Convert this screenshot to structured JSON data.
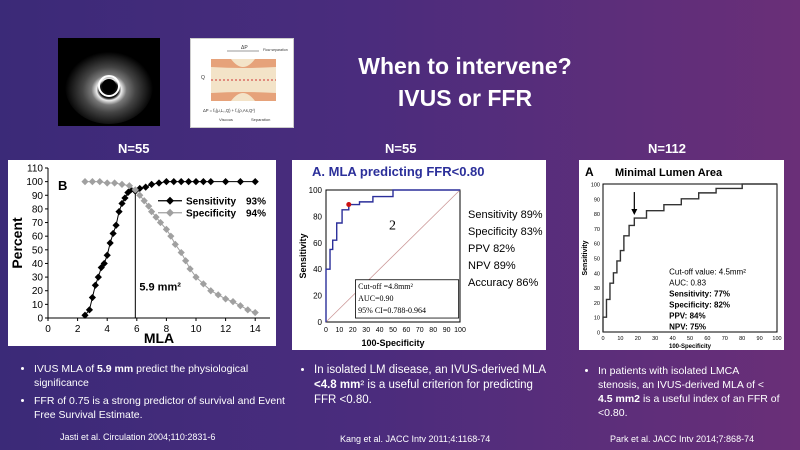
{
  "title": {
    "line1": "When to intervene?",
    "line2": "IVUS or FFR"
  },
  "panels": [
    {
      "n_label": "N=55",
      "chart_data": {
        "type": "line",
        "panel_letter": "B",
        "xlabel": "MLA",
        "ylabel": "Percent",
        "xlim": [
          0,
          15
        ],
        "ylim": [
          0,
          110
        ],
        "x_ticks": [
          0,
          2,
          4,
          6,
          8,
          10,
          12,
          14
        ],
        "y_ticks": [
          0,
          10,
          20,
          30,
          40,
          50,
          60,
          70,
          80,
          90,
          100,
          110
        ],
        "series": [
          {
            "name": "Sensitivity",
            "legend_value": "93%",
            "x": [
              2.5,
              2.8,
              3.0,
              3.2,
              3.4,
              3.6,
              3.8,
              4.0,
              4.2,
              4.4,
              4.6,
              4.8,
              5.0,
              5.2,
              5.4,
              5.6,
              5.9,
              6.2,
              6.6,
              7.0,
              7.5,
              8.0,
              8.5,
              9.0,
              9.5,
              10.0,
              10.5,
              11.0,
              12.0,
              13.0,
              14.0
            ],
            "y": [
              2,
              6,
              15,
              24,
              30,
              37,
              40,
              46,
              55,
              62,
              68,
              78,
              84,
              88,
              92,
              94,
              93,
              95,
              96,
              98,
              99,
              100,
              100,
              100,
              100,
              100,
              100,
              100,
              100,
              100,
              100
            ]
          },
          {
            "name": "Specificity",
            "legend_value": "94%",
            "x": [
              2.5,
              3.0,
              3.5,
              4.0,
              4.5,
              5.0,
              5.5,
              5.9,
              6.2,
              6.5,
              6.8,
              7.0,
              7.3,
              7.6,
              8.0,
              8.3,
              8.6,
              9.0,
              9.3,
              9.6,
              10.0,
              10.5,
              11.0,
              11.5,
              12.0,
              12.5,
              13.0,
              13.5,
              14.0
            ],
            "y": [
              100,
              100,
              100,
              99,
              99,
              98,
              97,
              94,
              90,
              86,
              82,
              78,
              74,
              70,
              65,
              60,
              54,
              48,
              42,
              36,
              30,
              25,
              20,
              17,
              14,
              12,
              9,
              6,
              4
            ]
          }
        ],
        "annotation": "5.9 mm²",
        "cutoff_x": 5.9
      },
      "bullets": [
        {
          "pre": "IVUS MLA of ",
          "bold": "5.9 mm",
          "post": " predict the physiological significance"
        },
        {
          "pre": "FFR of 0.75 is a strong predictor of survival and Event Free Survival Estimate.",
          "bold": "",
          "post": ""
        }
      ],
      "citation": "Jasti et al. Circulation 2004;110:2831-6"
    },
    {
      "n_label": "N=55",
      "chart_data": {
        "type": "line",
        "title": "A. MLA predicting FFR<0.80",
        "xlabel": "100-Specificity",
        "ylabel": "Sensitivity",
        "xlim": [
          0,
          100
        ],
        "ylim": [
          0,
          100
        ],
        "x_ticks": [
          0,
          10,
          20,
          30,
          40,
          50,
          60,
          70,
          80,
          90,
          100
        ],
        "y_ticks": [
          0,
          20,
          40,
          60,
          80,
          100
        ],
        "roc": {
          "x": [
            0,
            0,
            3,
            3,
            5,
            5,
            8,
            8,
            12,
            12,
            17,
            17,
            25,
            25,
            35,
            35,
            50,
            50,
            100
          ],
          "y": [
            0,
            40,
            40,
            55,
            55,
            62,
            62,
            75,
            75,
            85,
            85,
            89,
            89,
            91,
            91,
            95,
            95,
            100,
            100
          ]
        },
        "cutoff_point": [
          17,
          89
        ],
        "box_label": "2",
        "stats": [
          "Sensitivity 89%",
          "Specificity 83%",
          "PPV 82%",
          "NPV 89%",
          "Accuracy 86%"
        ],
        "inset": [
          "Cut-off =4.8mm²",
          "AUC=0.90",
          "95% CI=0.788-0.964"
        ]
      },
      "bullets": [
        {
          "pre": "In isolated LM disease, an IVUS-derived MLA ",
          "bold": "<4.8 mm",
          "post": "² is a useful criterion for predicting FFR <0.80."
        }
      ],
      "citation": "Kang et al. JACC Intv 2011;4:1168-74"
    },
    {
      "n_label": "N=112",
      "chart_data": {
        "type": "line",
        "panel_letter": "A",
        "title": "Minimal Lumen Area",
        "xlabel": "100-Specificity",
        "ylabel": "Sensitivity",
        "xlim": [
          0,
          100
        ],
        "ylim": [
          0,
          100
        ],
        "x_ticks": [
          0,
          10,
          20,
          30,
          40,
          50,
          60,
          70,
          80,
          90,
          100
        ],
        "y_ticks": [
          0,
          10,
          20,
          30,
          40,
          50,
          60,
          70,
          80,
          90,
          100
        ],
        "roc": {
          "x": [
            0,
            0,
            2,
            2,
            4,
            4,
            6,
            6,
            8,
            8,
            10,
            10,
            12,
            12,
            15,
            15,
            18,
            18,
            25,
            25,
            35,
            35,
            45,
            45,
            55,
            55,
            65,
            65,
            80,
            80,
            100
          ],
          "y": [
            0,
            10,
            10,
            22,
            22,
            33,
            33,
            40,
            40,
            48,
            48,
            55,
            55,
            65,
            65,
            72,
            72,
            77,
            77,
            82,
            82,
            86,
            86,
            90,
            90,
            94,
            94,
            97,
            97,
            100,
            100
          ]
        },
        "arrow_at": [
          18,
          77
        ],
        "stats": [
          "Cut-off value: 4.5mm²",
          "AUC: 0.83",
          "Sensitivity: 77%",
          "Specificity: 82%",
          "PPV: 84%",
          "NPV: 75%"
        ]
      },
      "bullets": [
        {
          "pre": "In patients with isolated LMCA stenosis, an IVUS-derived MLA of < ",
          "bold": "4.5 mm2",
          "post": " is a useful index of an FFR of <0.80."
        }
      ],
      "citation": "Park et al. JACC Intv 2014;7:868-74"
    }
  ],
  "figure2": {
    "label_dp": "ΔP",
    "label_q": "Q",
    "label_flow": "Flow separation",
    "label_viscous": "Viscous",
    "label_separation": "Separation",
    "label_formula": "ΔP = fᵥ(μ,Lₛ,Q) + fₛ(ρ,As,Q²)"
  },
  "colors": {
    "diamond": "#000000",
    "gray_diamond": "#a0a0a0",
    "roc_blue": "#2b2f9a",
    "dot_red": "#cc1111"
  }
}
